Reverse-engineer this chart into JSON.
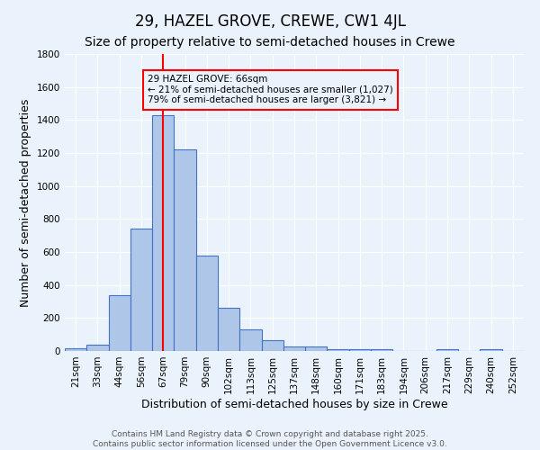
{
  "title": "29, HAZEL GROVE, CREWE, CW1 4JL",
  "subtitle": "Size of property relative to semi-detached houses in Crewe",
  "xlabel": "Distribution of semi-detached houses by size in Crewe",
  "ylabel": "Number of semi-detached properties",
  "categories": [
    "21sqm",
    "33sqm",
    "44sqm",
    "56sqm",
    "67sqm",
    "79sqm",
    "90sqm",
    "102sqm",
    "113sqm",
    "125sqm",
    "137sqm",
    "148sqm",
    "160sqm",
    "171sqm",
    "183sqm",
    "194sqm",
    "206sqm",
    "217sqm",
    "229sqm",
    "240sqm",
    "252sqm"
  ],
  "values": [
    15,
    40,
    340,
    740,
    1430,
    1220,
    580,
    260,
    130,
    65,
    30,
    25,
    10,
    10,
    10,
    0,
    0,
    10,
    0,
    10,
    0
  ],
  "bar_color": "#aec6e8",
  "bar_edge_color": "#4472c4",
  "vline_x_index": 4,
  "vline_color": "red",
  "annotation_title": "29 HAZEL GROVE: 66sqm",
  "annotation_line1": "← 21% of semi-detached houses are smaller (1,027)",
  "annotation_line2": "79% of semi-detached houses are larger (3,821) →",
  "annotation_box_color": "red",
  "ylim": [
    0,
    1800
  ],
  "yticks": [
    0,
    200,
    400,
    600,
    800,
    1000,
    1200,
    1400,
    1600,
    1800
  ],
  "footer_line1": "Contains HM Land Registry data © Crown copyright and database right 2025.",
  "footer_line2": "Contains public sector information licensed under the Open Government Licence v3.0.",
  "bg_color": "#eaf3fb",
  "grid_color": "white",
  "title_fontsize": 12,
  "subtitle_fontsize": 10,
  "axis_label_fontsize": 9,
  "tick_fontsize": 7.5,
  "footer_fontsize": 6.5,
  "annotation_fontsize": 7.5
}
